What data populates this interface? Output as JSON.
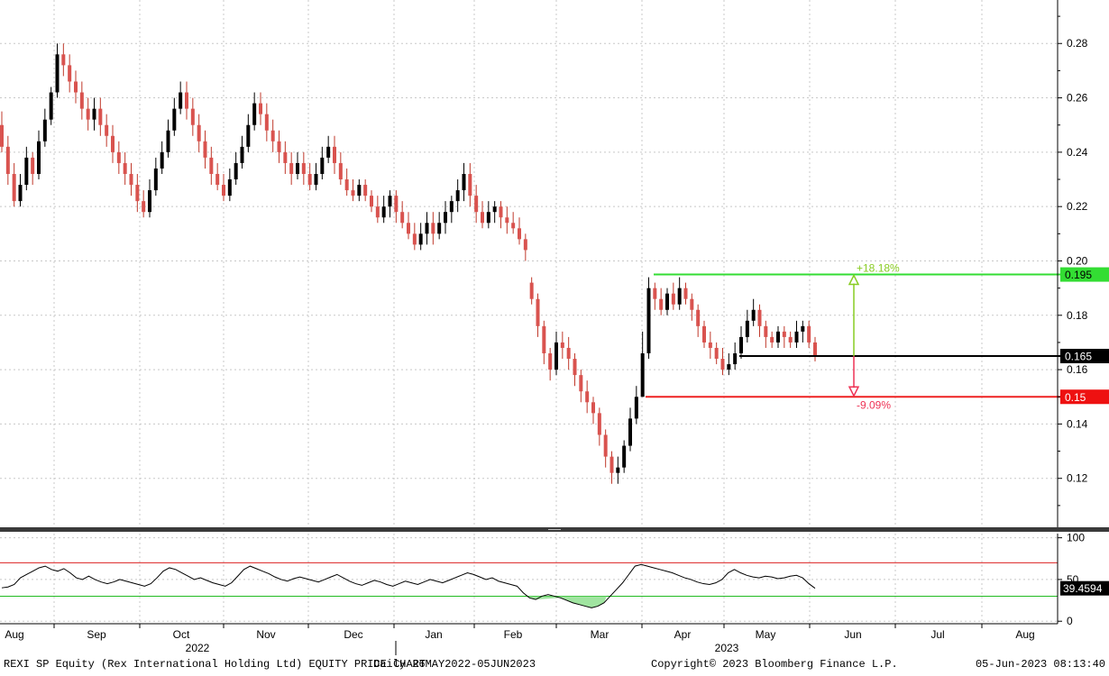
{
  "chart_data": {
    "type": "candlestick",
    "price_axis": {
      "ylim": [
        0.102,
        0.296
      ],
      "ticks": [
        0.12,
        0.14,
        0.16,
        0.18,
        0.2,
        0.22,
        0.24,
        0.26,
        0.28
      ],
      "tick_labels": [
        "0.12",
        "0.14",
        "0.16",
        "0.18",
        "0.20",
        "0.22",
        "0.24",
        "0.26",
        "0.28"
      ],
      "gridlines": true
    },
    "time_axis": {
      "months": [
        "Aug",
        "Sep",
        "Oct",
        "Nov",
        "Dec",
        "Jan",
        "Feb",
        "Mar",
        "Apr",
        "May",
        "Jun",
        "Jul",
        "Aug"
      ],
      "years": [
        "2022",
        "2023"
      ]
    },
    "candles": [
      [
        0.25,
        0.242,
        0.255,
        0.24
      ],
      [
        0.242,
        0.232,
        0.246,
        0.228
      ],
      [
        0.232,
        0.222,
        0.236,
        0.22
      ],
      [
        0.222,
        0.228,
        0.232,
        0.22
      ],
      [
        0.228,
        0.238,
        0.242,
        0.226
      ],
      [
        0.238,
        0.232,
        0.24,
        0.228
      ],
      [
        0.232,
        0.244,
        0.248,
        0.23
      ],
      [
        0.244,
        0.252,
        0.256,
        0.242
      ],
      [
        0.252,
        0.262,
        0.264,
        0.25
      ],
      [
        0.262,
        0.276,
        0.28,
        0.26
      ],
      [
        0.276,
        0.272,
        0.28,
        0.268
      ],
      [
        0.272,
        0.266,
        0.276,
        0.262
      ],
      [
        0.266,
        0.262,
        0.27,
        0.258
      ],
      [
        0.262,
        0.256,
        0.266,
        0.252
      ],
      [
        0.256,
        0.252,
        0.26,
        0.248
      ],
      [
        0.252,
        0.256,
        0.26,
        0.248
      ],
      [
        0.256,
        0.25,
        0.26,
        0.246
      ],
      [
        0.25,
        0.246,
        0.254,
        0.242
      ],
      [
        0.246,
        0.24,
        0.25,
        0.236
      ],
      [
        0.24,
        0.236,
        0.244,
        0.232
      ],
      [
        0.236,
        0.232,
        0.24,
        0.228
      ],
      [
        0.232,
        0.228,
        0.236,
        0.224
      ],
      [
        0.228,
        0.222,
        0.232,
        0.218
      ],
      [
        0.222,
        0.218,
        0.226,
        0.216
      ],
      [
        0.218,
        0.226,
        0.23,
        0.216
      ],
      [
        0.226,
        0.234,
        0.238,
        0.224
      ],
      [
        0.234,
        0.24,
        0.244,
        0.232
      ],
      [
        0.24,
        0.248,
        0.252,
        0.238
      ],
      [
        0.248,
        0.256,
        0.26,
        0.246
      ],
      [
        0.256,
        0.262,
        0.266,
        0.254
      ],
      [
        0.262,
        0.256,
        0.266,
        0.252
      ],
      [
        0.256,
        0.25,
        0.26,
        0.246
      ],
      [
        0.25,
        0.244,
        0.254,
        0.24
      ],
      [
        0.244,
        0.238,
        0.248,
        0.234
      ],
      [
        0.238,
        0.232,
        0.242,
        0.228
      ],
      [
        0.232,
        0.228,
        0.236,
        0.226
      ],
      [
        0.228,
        0.224,
        0.232,
        0.222
      ],
      [
        0.224,
        0.23,
        0.234,
        0.222
      ],
      [
        0.23,
        0.236,
        0.24,
        0.228
      ],
      [
        0.236,
        0.242,
        0.246,
        0.234
      ],
      [
        0.242,
        0.25,
        0.254,
        0.24
      ],
      [
        0.25,
        0.258,
        0.262,
        0.248
      ],
      [
        0.258,
        0.254,
        0.262,
        0.25
      ],
      [
        0.254,
        0.248,
        0.258,
        0.244
      ],
      [
        0.248,
        0.244,
        0.252,
        0.24
      ],
      [
        0.244,
        0.24,
        0.248,
        0.236
      ],
      [
        0.24,
        0.236,
        0.244,
        0.232
      ],
      [
        0.236,
        0.232,
        0.24,
        0.228
      ],
      [
        0.232,
        0.236,
        0.24,
        0.23
      ],
      [
        0.236,
        0.232,
        0.24,
        0.228
      ],
      [
        0.232,
        0.228,
        0.236,
        0.226
      ],
      [
        0.228,
        0.232,
        0.236,
        0.226
      ],
      [
        0.232,
        0.238,
        0.242,
        0.23
      ],
      [
        0.238,
        0.242,
        0.246,
        0.236
      ],
      [
        0.242,
        0.236,
        0.246,
        0.232
      ],
      [
        0.236,
        0.23,
        0.24,
        0.228
      ],
      [
        0.23,
        0.226,
        0.234,
        0.224
      ],
      [
        0.226,
        0.224,
        0.23,
        0.222
      ],
      [
        0.224,
        0.228,
        0.23,
        0.222
      ],
      [
        0.228,
        0.224,
        0.23,
        0.222
      ],
      [
        0.224,
        0.22,
        0.226,
        0.218
      ],
      [
        0.22,
        0.216,
        0.224,
        0.214
      ],
      [
        0.216,
        0.22,
        0.224,
        0.214
      ],
      [
        0.22,
        0.224,
        0.226,
        0.216
      ],
      [
        0.224,
        0.218,
        0.226,
        0.214
      ],
      [
        0.218,
        0.214,
        0.222,
        0.212
      ],
      [
        0.214,
        0.21,
        0.218,
        0.208
      ],
      [
        0.21,
        0.206,
        0.214,
        0.204
      ],
      [
        0.206,
        0.21,
        0.214,
        0.204
      ],
      [
        0.21,
        0.214,
        0.218,
        0.206
      ],
      [
        0.214,
        0.21,
        0.218,
        0.206
      ],
      [
        0.21,
        0.214,
        0.218,
        0.208
      ],
      [
        0.214,
        0.218,
        0.222,
        0.21
      ],
      [
        0.218,
        0.222,
        0.224,
        0.214
      ],
      [
        0.222,
        0.226,
        0.23,
        0.218
      ],
      [
        0.226,
        0.232,
        0.236,
        0.222
      ],
      [
        0.232,
        0.224,
        0.236,
        0.22
      ],
      [
        0.224,
        0.218,
        0.228,
        0.214
      ],
      [
        0.218,
        0.214,
        0.222,
        0.212
      ],
      [
        0.214,
        0.218,
        0.222,
        0.212
      ],
      [
        0.218,
        0.22,
        0.222,
        0.214
      ],
      [
        0.22,
        0.216,
        0.222,
        0.212
      ],
      [
        0.216,
        0.214,
        0.22,
        0.21
      ],
      [
        0.214,
        0.212,
        0.218,
        0.21
      ],
      [
        0.212,
        0.208,
        0.216,
        0.206
      ],
      [
        0.208,
        0.204,
        0.21,
        0.2
      ],
      [
        0.192,
        0.186,
        0.194,
        0.184
      ],
      [
        0.186,
        0.176,
        0.188,
        0.172
      ],
      [
        0.176,
        0.166,
        0.178,
        0.162
      ],
      [
        0.166,
        0.16,
        0.168,
        0.156
      ],
      [
        0.16,
        0.17,
        0.174,
        0.158
      ],
      [
        0.17,
        0.168,
        0.174,
        0.164
      ],
      [
        0.168,
        0.164,
        0.172,
        0.16
      ],
      [
        0.164,
        0.158,
        0.166,
        0.154
      ],
      [
        0.158,
        0.152,
        0.16,
        0.148
      ],
      [
        0.152,
        0.148,
        0.156,
        0.144
      ],
      [
        0.148,
        0.144,
        0.15,
        0.14
      ],
      [
        0.144,
        0.136,
        0.146,
        0.132
      ],
      [
        0.136,
        0.128,
        0.138,
        0.124
      ],
      [
        0.128,
        0.122,
        0.13,
        0.118
      ],
      [
        0.122,
        0.124,
        0.128,
        0.118
      ],
      [
        0.124,
        0.132,
        0.134,
        0.122
      ],
      [
        0.132,
        0.142,
        0.146,
        0.13
      ],
      [
        0.142,
        0.15,
        0.154,
        0.14
      ],
      [
        0.15,
        0.166,
        0.174,
        0.15
      ],
      [
        0.166,
        0.19,
        0.194,
        0.164
      ],
      [
        0.19,
        0.186,
        0.192,
        0.182
      ],
      [
        0.186,
        0.182,
        0.19,
        0.18
      ],
      [
        0.182,
        0.188,
        0.19,
        0.18
      ],
      [
        0.188,
        0.184,
        0.192,
        0.182
      ],
      [
        0.184,
        0.19,
        0.194,
        0.182
      ],
      [
        0.19,
        0.186,
        0.192,
        0.184
      ],
      [
        0.186,
        0.182,
        0.188,
        0.178
      ],
      [
        0.182,
        0.176,
        0.184,
        0.172
      ],
      [
        0.176,
        0.17,
        0.178,
        0.168
      ],
      [
        0.17,
        0.168,
        0.174,
        0.164
      ],
      [
        0.168,
        0.164,
        0.17,
        0.162
      ],
      [
        0.164,
        0.16,
        0.168,
        0.158
      ],
      [
        0.16,
        0.162,
        0.166,
        0.158
      ],
      [
        0.162,
        0.166,
        0.17,
        0.16
      ],
      [
        0.166,
        0.172,
        0.176,
        0.164
      ],
      [
        0.172,
        0.178,
        0.182,
        0.17
      ],
      [
        0.178,
        0.182,
        0.186,
        0.176
      ],
      [
        0.182,
        0.176,
        0.184,
        0.172
      ],
      [
        0.176,
        0.172,
        0.178,
        0.168
      ],
      [
        0.172,
        0.17,
        0.174,
        0.168
      ],
      [
        0.17,
        0.174,
        0.176,
        0.168
      ],
      [
        0.174,
        0.172,
        0.176,
        0.168
      ],
      [
        0.172,
        0.17,
        0.174,
        0.168
      ],
      [
        0.17,
        0.174,
        0.178,
        0.168
      ],
      [
        0.174,
        0.176,
        0.178,
        0.17
      ],
      [
        0.176,
        0.17,
        0.178,
        0.168
      ],
      [
        0.17,
        0.165,
        0.172,
        0.163
      ]
    ],
    "levels": [
      {
        "name": "Upper",
        "value": 0.195,
        "label": "0.195",
        "pct_label": "+18.18%",
        "color": "#33dd33",
        "arrow_color": "#88cc22"
      },
      {
        "name": "Last",
        "value": 0.165,
        "label": "0.165",
        "color": "#000000"
      },
      {
        "name": "Lower",
        "value": 0.15,
        "label": "0.15",
        "pct_label": "-9.09%",
        "color": "#ee2222",
        "arrow_color": "#ee3355"
      }
    ],
    "rsi": {
      "ylim": [
        -3,
        105
      ],
      "ticks": [
        0,
        50,
        100
      ],
      "tick_labels": [
        "0",
        "50",
        "100"
      ],
      "overbought": 70,
      "oversold": 30,
      "last_label": "39.4594",
      "values": [
        40,
        41,
        44,
        52,
        56,
        60,
        64,
        66,
        62,
        60,
        63,
        58,
        52,
        50,
        54,
        50,
        47,
        45,
        47,
        50,
        48,
        46,
        44,
        42,
        45,
        52,
        60,
        64,
        62,
        58,
        54,
        50,
        52,
        49,
        46,
        44,
        42,
        46,
        54,
        62,
        66,
        63,
        60,
        57,
        53,
        50,
        48,
        51,
        53,
        51,
        49,
        47,
        50,
        53,
        56,
        52,
        48,
        45,
        43,
        46,
        49,
        47,
        44,
        42,
        45,
        48,
        46,
        44,
        47,
        50,
        48,
        46,
        49,
        52,
        55,
        58,
        56,
        53,
        50,
        52,
        48,
        46,
        44,
        42,
        34,
        28,
        26,
        30,
        32,
        30,
        28,
        25,
        22,
        20,
        18,
        16,
        18,
        22,
        30,
        38,
        46,
        56,
        66,
        68,
        66,
        64,
        62,
        60,
        58,
        55,
        52,
        50,
        47,
        45,
        44,
        46,
        50,
        58,
        62,
        58,
        55,
        53,
        52,
        54,
        53,
        51,
        52,
        54,
        55,
        52,
        45,
        39.46
      ]
    },
    "footer": {
      "title": "REXI SP Equity (Rex International Holding Ltd) EQUITY PRICE CHART",
      "range": "Daily 26MAY2022-05JUN2023",
      "copyright": "Copyright© 2023 Bloomberg Finance L.P.",
      "timestamp": "05-Jun-2023 08:13:40"
    }
  }
}
